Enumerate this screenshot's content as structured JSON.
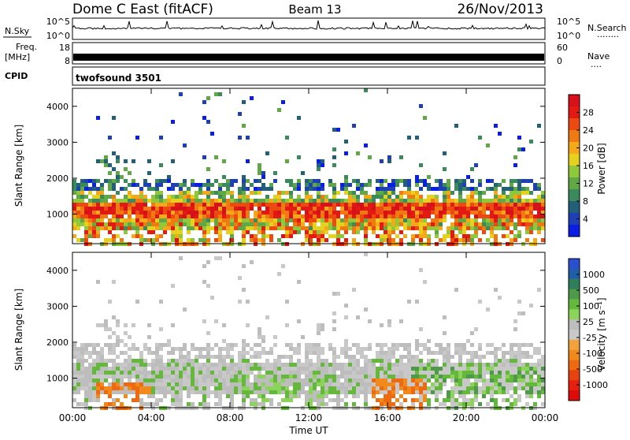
{
  "header": {
    "title": "Dome C East (fitACF)",
    "beam": "Beam 13",
    "date": "26/Nov/2013"
  },
  "strips": {
    "nsky": {
      "label": "N.Sky",
      "tick_top": "10^5",
      "tick_bottom": "10^0",
      "right_label": "N.Search",
      "right_key": "........"
    },
    "freq": {
      "label_line1": "Freq.",
      "label_line2": "[MHz]",
      "tick_top": "18",
      "tick_bottom": "8",
      "right_tick_top": "60",
      "right_tick_bottom": "0",
      "right_label": "Nave",
      "right_key": "...."
    },
    "cpid": {
      "label": "CPID",
      "program": "twofsound 3501"
    }
  },
  "chart_data": [
    {
      "type": "heatmap",
      "name": "power",
      "ylabel": "Slant Range [km]",
      "ylim": [
        180,
        4500
      ],
      "yticks": [
        "1000",
        "2000",
        "3000",
        "4000"
      ],
      "xlim_hours": [
        0,
        24
      ],
      "xticks": [
        "00:00",
        "04:00",
        "08:00",
        "12:00",
        "16:00",
        "20:00",
        "00:00"
      ],
      "colorbar": {
        "label": "Power [dB]",
        "min": 0,
        "max": 32,
        "ticks": [
          "4",
          "8",
          "12",
          "16",
          "20",
          "24",
          "28"
        ],
        "colors": [
          "#0a1ee6",
          "#1e3fb5",
          "#22607a",
          "#3b8a5b",
          "#5fa845",
          "#8fc83a",
          "#e6d21e",
          "#f5a81a",
          "#f07a12",
          "#ec4a10",
          "#e31a14",
          "#d8101a"
        ]
      }
    },
    {
      "type": "heatmap",
      "name": "velocity",
      "ylabel": "Slant Range [km]",
      "xlabel": "Time UT",
      "ylim": [
        180,
        4500
      ],
      "yticks": [
        "1000",
        "2000",
        "3000",
        "4000"
      ],
      "xlim_hours": [
        0,
        24
      ],
      "xticks": [
        "00:00",
        "04:00",
        "08:00",
        "12:00",
        "16:00",
        "20:00",
        "00:00"
      ],
      "colorbar": {
        "label": "Velocity [m s⁻¹]",
        "ticks": [
          "1000",
          "500",
          "100",
          "25",
          "-25",
          "-100",
          "-500",
          "-1000"
        ],
        "colors": [
          "#2a4fd0",
          "#1f5fa8",
          "#2f7f5a",
          "#4e9a4a",
          "#64b83c",
          "#8bd35a",
          "#bdbdbd",
          "#c8c8c8",
          "#f2a23c",
          "#f08a1c",
          "#ee6a10",
          "#e8420e",
          "#e62010",
          "#e00a0a"
        ]
      }
    }
  ]
}
